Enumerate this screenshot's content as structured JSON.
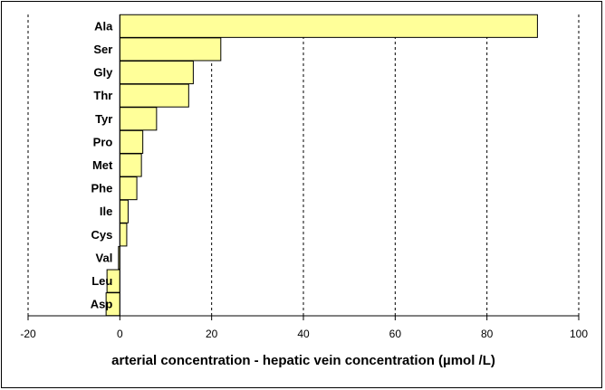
{
  "chart_data": {
    "type": "bar",
    "orientation": "horizontal",
    "title": "",
    "xlabel": "arterial concentration - hepatic vein concentration (µmol /L)",
    "ylabel": "",
    "xlim": [
      -20,
      100
    ],
    "xticks": [
      -20,
      0,
      20,
      40,
      60,
      80,
      100
    ],
    "grid": "vertical dashed",
    "categories": [
      "Ala",
      "Ser",
      "Gly",
      "Thr",
      "Tyr",
      "Pro",
      "Met",
      "Phe",
      "Ile",
      "Cys",
      "Val",
      "Leu",
      "Asp"
    ],
    "series": [
      {
        "values": [
          91,
          22,
          16,
          15,
          8,
          5,
          4.7,
          3.7,
          1.8,
          1.5,
          -0.3,
          -2.8,
          -3
        ]
      }
    ],
    "colors": {
      "bar_fill": "#ffff99",
      "bar_stroke": "#000000",
      "grid": "#000000"
    }
  }
}
